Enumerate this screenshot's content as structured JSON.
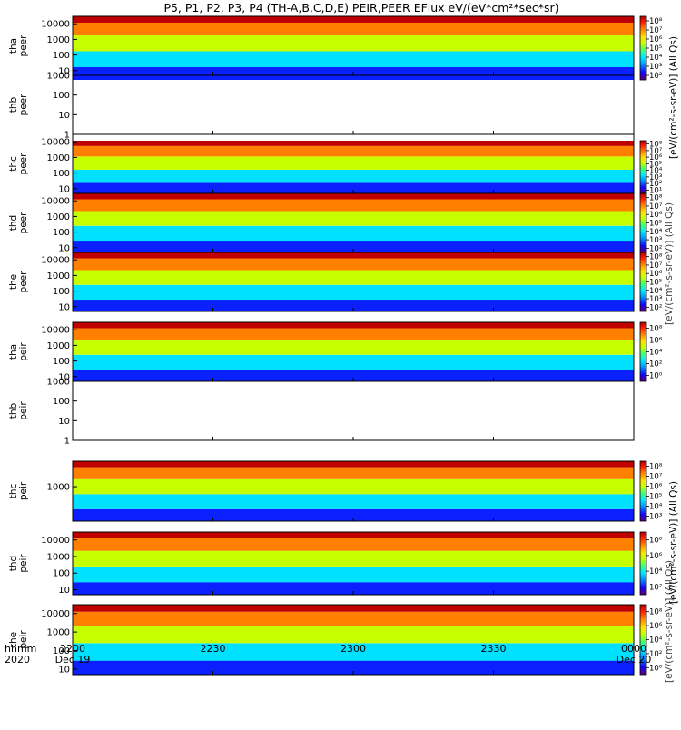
{
  "title": "P5, P1, P2, P3, P4 (TH-A,B,C,D,E) PEIR,PEER EFlux eV/(eV*cm²*sec*sr)",
  "time_axis": {
    "row_label_1": "hhmm",
    "row_label_2": "2020",
    "ticks": [
      {
        "hhmm": "2200",
        "date": "Dec 19"
      },
      {
        "hhmm": "2230",
        "date": ""
      },
      {
        "hhmm": "2300",
        "date": ""
      },
      {
        "hhmm": "2330",
        "date": ""
      },
      {
        "hhmm": "0000",
        "date": "Dec 20"
      }
    ]
  },
  "colorbar_labels": {
    "peer_top": "[eV/(cm²-s-sr-eV)] (All Qs)",
    "peer_overlap": "[eV/(cm²-s-sr-eV)] (All Qs)",
    "peir_top": "[eV/(cm²-s-sr-eV)] (All Qs)",
    "peir_overlap": "[eV/(cm²-s-sr-eV)] (All Qs)"
  },
  "chart_data": {
    "type": "heatmap",
    "x_range": [
      "2020-12-19 22:00",
      "2020-12-20 00:00"
    ],
    "y_scale": "log",
    "color_scale": "log",
    "colormap": [
      "#5a0070",
      "#1a00ff",
      "#0090ff",
      "#00e8ff",
      "#3dff7a",
      "#c8ff00",
      "#ffe000",
      "#ff8000",
      "#ff1a00",
      "#b00000"
    ],
    "panels": [
      {
        "id": "tha-peer",
        "label": [
          "tha",
          "peer"
        ],
        "yticks": [
          "10",
          "100",
          "1000",
          "10000"
        ],
        "ylim": [
          5,
          30000
        ],
        "has_data": true,
        "colorbar": {
          "ticks": [
            "10²",
            "10³",
            "10⁴",
            "10⁵",
            "10⁶",
            "10⁷",
            "10⁸"
          ]
        }
      },
      {
        "id": "thb-peer",
        "label": [
          "thb",
          "peer"
        ],
        "yticks": [
          "1",
          "10",
          "100",
          "1000"
        ],
        "ylim": [
          1,
          1000
        ],
        "has_data": false
      },
      {
        "id": "thc-peer",
        "label": [
          "thc",
          "peer"
        ],
        "yticks": [
          "10",
          "100",
          "1000",
          "10000"
        ],
        "ylim": [
          5,
          30000
        ],
        "has_data": true,
        "colorbar": {
          "ticks": [
            "10¹",
            "10²",
            "10³",
            "10⁴",
            "10⁵",
            "10⁶",
            "10⁷",
            "10⁸"
          ]
        }
      },
      {
        "id": "thd-peer",
        "label": [
          "thd",
          "peer"
        ],
        "yticks": [
          "10",
          "100",
          "1000",
          "10000"
        ],
        "ylim": [
          5,
          30000
        ],
        "has_data": true,
        "colorbar": {
          "ticks": [
            "10²",
            "10³",
            "10⁴",
            "10⁵",
            "10⁶",
            "10⁷",
            "10⁸"
          ]
        }
      },
      {
        "id": "the-peer",
        "label": [
          "the",
          "peer"
        ],
        "yticks": [
          "10",
          "100",
          "1000",
          "10000"
        ],
        "ylim": [
          5,
          30000
        ],
        "has_data": true,
        "colorbar": {
          "ticks": [
            "10²",
            "10³",
            "10⁴",
            "10⁵",
            "10⁶",
            "10⁷",
            "10⁸"
          ]
        }
      },
      {
        "id": "tha-peir",
        "label": [
          "tha",
          "peir"
        ],
        "yticks": [
          "10",
          "100",
          "1000",
          "10000"
        ],
        "ylim": [
          5,
          30000
        ],
        "has_data": true,
        "colorbar": {
          "ticks": [
            "10⁰",
            "10²",
            "10⁴",
            "10⁶",
            "10⁸"
          ]
        }
      },
      {
        "id": "thb-peir",
        "label": [
          "thb",
          "peir"
        ],
        "yticks": [
          "1",
          "10",
          "100",
          "1000"
        ],
        "ylim": [
          1,
          1000
        ],
        "has_data": false
      },
      {
        "id": "thc-peir",
        "label": [
          "thc",
          "peir"
        ],
        "yticks": [
          "1000"
        ],
        "ylim": [
          10,
          30000
        ],
        "has_data": true,
        "colorbar": {
          "ticks": [
            "10³",
            "10⁴",
            "10⁵",
            "10⁶",
            "10⁷",
            "10⁸"
          ]
        }
      },
      {
        "id": "thd-peir",
        "label": [
          "thd",
          "peir"
        ],
        "yticks": [
          "10",
          "100",
          "1000",
          "10000"
        ],
        "ylim": [
          5,
          30000
        ],
        "has_data": true,
        "colorbar": {
          "ticks": [
            "10²",
            "10⁴",
            "10⁶",
            "10⁸"
          ]
        }
      },
      {
        "id": "the-peir",
        "label": [
          "the",
          "peir"
        ],
        "yticks": [
          "10",
          "100",
          "1000",
          "10000"
        ],
        "ylim": [
          5,
          30000
        ],
        "has_data": true,
        "colorbar": {
          "ticks": [
            "10⁰",
            "10²",
            "10⁴",
            "10⁶",
            "10⁸"
          ]
        }
      }
    ]
  }
}
